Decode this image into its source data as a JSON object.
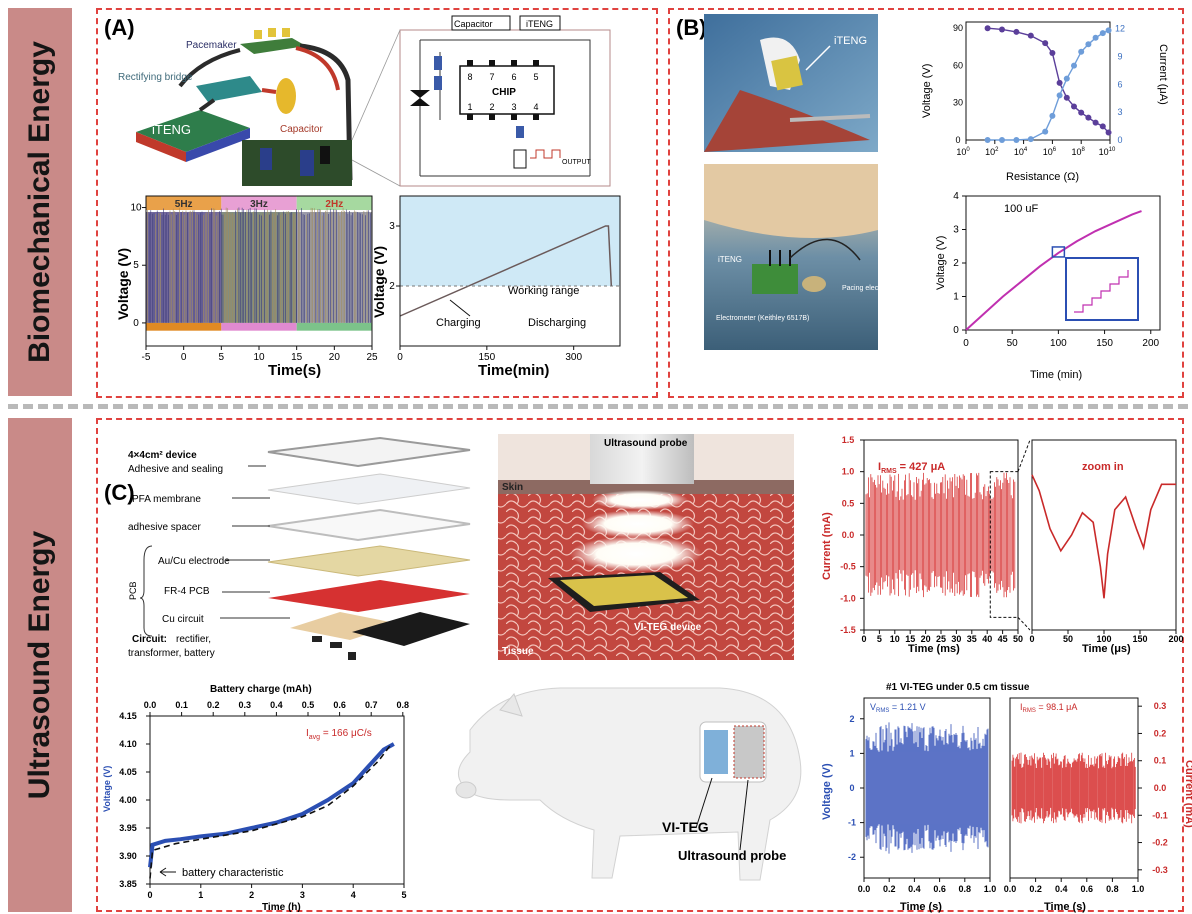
{
  "sections": {
    "top": "Biomechanical Energy",
    "bottom": "Ultrasound Energy"
  },
  "panel_labels": {
    "a": "(A)",
    "b": "(B)",
    "c": "(C)"
  },
  "panelA": {
    "device_labels": {
      "pacemaker": "Pacemaker",
      "bridge": "Rectifying bridge",
      "capacitor": "Capacitor",
      "iteng": "iTENG"
    },
    "circuit": {
      "capacitor": "Capacitor",
      "iteng": "iTENG",
      "chip": "CHIP",
      "output": "OUTPUT",
      "pins_top": [
        "8",
        "7",
        "6",
        "5"
      ],
      "pins_bottom": [
        "1",
        "2",
        "3",
        "4"
      ]
    }
  },
  "panelB": {
    "photo_labels": {
      "iteng1": "iTENG",
      "iteng2": "iTENG",
      "pacing": "Pacing electrode",
      "electrometer": "Electrometer (Keithley 6517B)"
    },
    "inset_label": "100 uF"
  },
  "panelC": {
    "stack_labels": {
      "device": "4×4cm² device",
      "adhesive": "Adhesive and sealing",
      "pfa": "PFA membrane",
      "spacer": "adhesive spacer",
      "electrode": "Au/Cu electrode",
      "fr4": "FR-4 PCB",
      "circuit": "Cu circuit",
      "pcb": "PCB",
      "circuit_note_bold": "Circuit:",
      "circuit_note1": "rectifier,",
      "circuit_note2": "transformer, battery"
    },
    "probe_labels": {
      "probe": "Ultrasound probe",
      "skin": "Skin",
      "device": "VI-TEG device",
      "tissue": "Tissue"
    },
    "pig_labels": {
      "viteg": "VI-TEG",
      "probe": "Ultrasound probe"
    },
    "tissue_title": "#1 VI-TEG under 0.5 cm tissue"
  },
  "chart_data": [
    {
      "id": "A-left",
      "type": "line",
      "xlabel": "Time(s)",
      "ylabel": "Voltage (V)",
      "xlim": [
        -5,
        25
      ],
      "ylim": [
        -2,
        11
      ],
      "xticks": [
        "-5",
        "0",
        "5",
        "10",
        "15",
        "20",
        "25"
      ],
      "yticks": [
        "0",
        "5",
        "10"
      ],
      "bands": [
        {
          "label": "5Hz",
          "x": [
            -5,
            5
          ],
          "color": "#e9a14a"
        },
        {
          "label": "3Hz",
          "x": [
            5,
            15
          ],
          "color": "#e8a0d4"
        },
        {
          "label": "2Hz",
          "x": [
            15,
            25
          ],
          "color": "#a6d9a0"
        }
      ],
      "series": [
        {
          "values_description_free": true,
          "peak": 10,
          "trough": -0.5
        }
      ]
    },
    {
      "id": "A-right",
      "type": "line",
      "xlabel": "Time(min)",
      "ylabel": "Voltage (V)",
      "xlim": [
        0,
        380
      ],
      "ylim": [
        1,
        3.5
      ],
      "xticks": [
        "0",
        "150",
        "300"
      ],
      "yticks": [
        "2",
        "3"
      ],
      "annotations": [
        "Working range",
        "Charging",
        "Discharging"
      ],
      "series": [
        {
          "x": [
            0,
            355,
            360,
            365
          ],
          "y": [
            1.5,
            3.0,
            3.0,
            2.0
          ]
        }
      ]
    },
    {
      "id": "B-top",
      "type": "line",
      "xlabel": "Resistance (Ω)",
      "ylabel": "Voltage (V)",
      "y2label": "Current (μA)",
      "xscale": "log",
      "xlim": [
        0,
        10
      ],
      "xticks": [
        "10^0",
        "10^2",
        "10^4",
        "10^6",
        "10^8",
        "10^10"
      ],
      "ylim": [
        0,
        95
      ],
      "yticks": [
        "0",
        "30",
        "60",
        "90"
      ],
      "y2lim": [
        0,
        12.7
      ],
      "y2ticks": [
        "0",
        "3",
        "6",
        "9",
        "12"
      ],
      "series": [
        {
          "axis": "left",
          "color": "#5b3f9a",
          "x": [
            1.5,
            2.5,
            3.5,
            4.5,
            5.5,
            6.0,
            6.5,
            7.0,
            7.5,
            8.0,
            8.5,
            9.0,
            9.5,
            9.9
          ],
          "y": [
            90,
            89,
            87,
            84,
            78,
            70,
            46,
            34,
            27,
            22,
            18,
            14,
            11,
            6
          ]
        },
        {
          "axis": "right",
          "color": "#6e9dd9",
          "x": [
            1.5,
            2.5,
            3.5,
            4.5,
            5.5,
            6.0,
            6.5,
            7.0,
            7.5,
            8.0,
            8.5,
            9.0,
            9.5,
            9.9
          ],
          "y": [
            0,
            0,
            0,
            0.1,
            0.9,
            2.6,
            4.8,
            6.6,
            8.0,
            9.5,
            10.3,
            11.0,
            11.5,
            11.8
          ]
        }
      ]
    },
    {
      "id": "B-bottom",
      "type": "line",
      "xlabel": "Time (min)",
      "ylabel": "Voltage (V)",
      "xlim": [
        0,
        210
      ],
      "ylim": [
        0,
        4
      ],
      "xticks": [
        "0",
        "50",
        "100",
        "150",
        "200"
      ],
      "yticks": [
        "0",
        "1",
        "2",
        "3",
        "4"
      ],
      "annotation": "100 uF",
      "series": [
        {
          "color": "#c030b0",
          "x": [
            0,
            20,
            40,
            60,
            80,
            100,
            120,
            140,
            160,
            180,
            190
          ],
          "y": [
            0,
            0.5,
            1.0,
            1.45,
            1.9,
            2.3,
            2.65,
            2.95,
            3.2,
            3.45,
            3.55
          ]
        }
      ]
    },
    {
      "id": "C-current",
      "type": "line",
      "xlabel": "Time (ms)",
      "ylabel": "Current (mA)",
      "xlim": [
        0,
        50
      ],
      "ylim": [
        -1.5,
        1.5
      ],
      "xticks": [
        "0",
        "5",
        "10",
        "15",
        "20",
        "25",
        "30",
        "35",
        "40",
        "45",
        "50"
      ],
      "yticks": [
        "-1.5",
        "-1.0",
        "-0.5",
        "0.0",
        "0.5",
        "1.0",
        "1.5"
      ],
      "annotation": "I_RMS = 427 μA",
      "amplitude": 1.0
    },
    {
      "id": "C-zoom",
      "type": "line",
      "xlabel": "Time (μs)",
      "title": "zoom in",
      "xlim": [
        0,
        200
      ],
      "xticks": [
        "0",
        "50",
        "100",
        "150",
        "200"
      ],
      "series": [
        {
          "color": "#c92a2a",
          "x": [
            0,
            10,
            25,
            40,
            55,
            70,
            85,
            95,
            100,
            105,
            115,
            130,
            145,
            155,
            165,
            180,
            200
          ],
          "y": [
            0.95,
            0.7,
            0.1,
            -0.25,
            0.0,
            0.35,
            0.2,
            -0.5,
            -1.0,
            -0.3,
            0.4,
            0.6,
            0.1,
            -0.2,
            0.4,
            0.8,
            0.8
          ]
        }
      ]
    },
    {
      "id": "C-battery",
      "type": "line",
      "xlabel": "Time (h)",
      "ylabel": "Voltage (V)",
      "x2label": "Battery charge (mAh)",
      "xlim": [
        0,
        5
      ],
      "xticks": [
        "0",
        "1",
        "2",
        "3",
        "4",
        "5"
      ],
      "x2ticks": [
        "0.0",
        "0.1",
        "0.2",
        "0.3",
        "0.4",
        "0.5",
        "0.6",
        "0.7",
        "0.8"
      ],
      "ylim": [
        3.85,
        4.15
      ],
      "yticks": [
        "3.85",
        "3.90",
        "3.95",
        "4.00",
        "4.05",
        "4.10",
        "4.15"
      ],
      "annotations": [
        "I_avg = 166 μC/s",
        "battery characteristic"
      ],
      "series": [
        {
          "name": "measured",
          "color": "#2b4fb3",
          "x": [
            0,
            0.05,
            0.3,
            0.6,
            1,
            1.5,
            2,
            2.5,
            3,
            3.5,
            4,
            4.3,
            4.6,
            4.8
          ],
          "y": [
            3.88,
            3.92,
            3.927,
            3.93,
            3.935,
            3.94,
            3.95,
            3.96,
            3.975,
            4.0,
            4.03,
            4.06,
            4.09,
            4.1
          ]
        },
        {
          "name": "battery characteristic",
          "color": "#111111",
          "dash": true,
          "x": [
            0,
            0.05,
            0.5,
            1,
            2,
            3,
            3.5,
            4,
            4.5,
            4.75
          ],
          "y": [
            3.86,
            3.91,
            3.922,
            3.93,
            3.945,
            3.97,
            3.99,
            4.025,
            4.07,
            4.1
          ]
        }
      ]
    },
    {
      "id": "C-vrms",
      "type": "line",
      "xlabel": "Time (s)",
      "ylabel": "Voltage (V)",
      "xlim": [
        0,
        1
      ],
      "ylim": [
        -2.6,
        2.6
      ],
      "xticks": [
        "0.0",
        "0.2",
        "0.4",
        "0.6",
        "0.8",
        "1.0"
      ],
      "yticks": [
        "-2",
        "-1",
        "0",
        "1",
        "2"
      ],
      "annotation": "V_RMS = 1.21 V",
      "amplitude": 1.9
    },
    {
      "id": "C-irms",
      "type": "line",
      "xlabel": "Time (s)",
      "ylabel": "Current (mA)",
      "xlim": [
        0,
        1
      ],
      "ylim": [
        -0.33,
        0.33
      ],
      "xticks": [
        "0.0",
        "0.2",
        "0.4",
        "0.6",
        "0.8",
        "1.0"
      ],
      "yticks": [
        "-0.3",
        "-0.2",
        "-0.1",
        "0.0",
        "0.1",
        "0.2",
        "0.3"
      ],
      "annotation": "I_RMS = 98.1 μA",
      "amplitude": 0.13
    }
  ],
  "axis_text": {
    "a_left_x": "Time(s)",
    "a_left_y": "Voltage (V)",
    "a_right_x": "Time(min)",
    "a_right_y": "Voltage (V)",
    "working": "Working range",
    "charging": "Charging",
    "discharging": "Discharging",
    "b_top_x": "Resistance (Ω)",
    "b_top_y": "Voltage (V)",
    "b_top_y2": "Current (μA)",
    "b_bot_x": "Time (min)",
    "b_bot_y": "Voltage (V)",
    "c_cur_x": "Time (ms)",
    "c_cur_y": "Current (mA)",
    "c_zoom_x": "Time (μs)",
    "c_zoom_t": "zoom in",
    "c_bat_x": "Time (h)",
    "c_bat_y": "Voltage (V)",
    "c_bat_top": "Battery charge (mAh)",
    "c_bat_iavg": "I",
    "c_bat_iavg_sub": "avg",
    "c_bat_iavg_val": " = 166 μC/s",
    "c_bat_note": "battery characteristic",
    "c_v_x": "Time (s)",
    "c_v_y": "Voltage (V)",
    "c_i_x": "Time (s)",
    "c_i_y": "Current (mA)",
    "c_cur_irms": "I",
    "c_cur_irms_sub": "RMS",
    "c_cur_irms_val": " = 427 μA",
    "c_v_vrms": "V",
    "c_v_vrms_sub": "RMS",
    "c_v_vrms_val": " = 1.21 V",
    "c_i_irms": "I",
    "c_i_irms_sub": "RMS",
    "c_i_irms_val": " = 98.1 μA"
  }
}
